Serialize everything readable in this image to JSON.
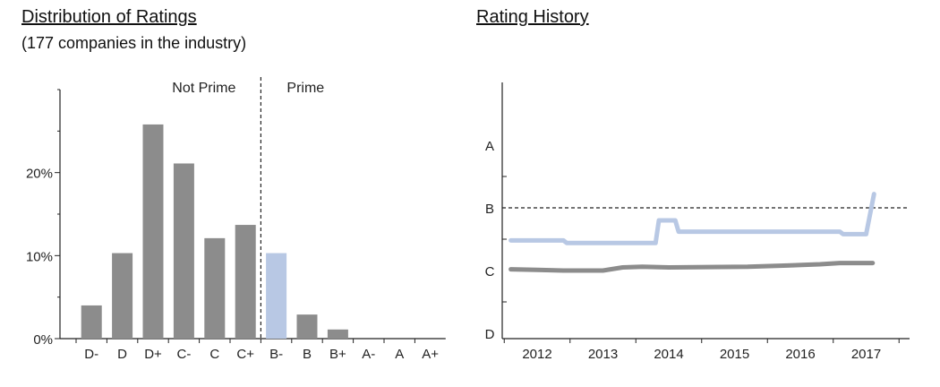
{
  "chart_data": [
    {
      "type": "bar",
      "title": "Distribution of Ratings",
      "subtitle": "(177 companies in the industry)",
      "categories": [
        "D-",
        "D",
        "D+",
        "C-",
        "C",
        "C+",
        "B-",
        "B",
        "B+",
        "A-",
        "A",
        "A+"
      ],
      "values": [
        4.0,
        10.3,
        25.8,
        21.1,
        12.1,
        13.7,
        10.3,
        2.9,
        1.1,
        0,
        0,
        0
      ],
      "highlight_category": "B-",
      "ylim": [
        0,
        30
      ],
      "yticks": [
        0,
        10,
        20
      ],
      "ytick_labels": [
        "0%",
        "10%",
        "20%"
      ],
      "divider_after": "C+",
      "region_labels": {
        "left": "Not Prime",
        "right": "Prime"
      },
      "colors": {
        "bar": "#8c8c8c",
        "highlight": "#b8c8e4",
        "axis": "#222222"
      }
    },
    {
      "type": "line",
      "title": "Rating History",
      "x_ticks": [
        "2012",
        "2013",
        "2014",
        "2015",
        "2016",
        "2017"
      ],
      "y_levels": [
        "A",
        "B",
        "C",
        "D"
      ],
      "threshold": 2.5,
      "series": [
        {
          "color": "#b8c8e4",
          "points": [
            [
              2011.6,
              1.98
            ],
            [
              2012.4,
              1.98
            ],
            [
              2012.45,
              1.94
            ],
            [
              2013.8,
              1.94
            ],
            [
              2013.85,
              2.3
            ],
            [
              2014.1,
              2.3
            ],
            [
              2014.15,
              2.12
            ],
            [
              2016.6,
              2.12
            ],
            [
              2016.65,
              2.08
            ],
            [
              2017.0,
              2.08
            ],
            [
              2017.12,
              2.72
            ]
          ]
        },
        {
          "color": "#8c8c8c",
          "points": [
            [
              2011.6,
              1.52
            ],
            [
              2012.0,
              1.51
            ],
            [
              2012.4,
              1.5
            ],
            [
              2013.0,
              1.5
            ],
            [
              2013.3,
              1.55
            ],
            [
              2013.6,
              1.56
            ],
            [
              2014.0,
              1.55
            ],
            [
              2015.2,
              1.56
            ],
            [
              2015.8,
              1.58
            ],
            [
              2016.3,
              1.6
            ],
            [
              2016.6,
              1.62
            ],
            [
              2017.1,
              1.62
            ]
          ]
        }
      ],
      "colors": {
        "axis": "#222222",
        "threshold": "#222222"
      }
    }
  ]
}
